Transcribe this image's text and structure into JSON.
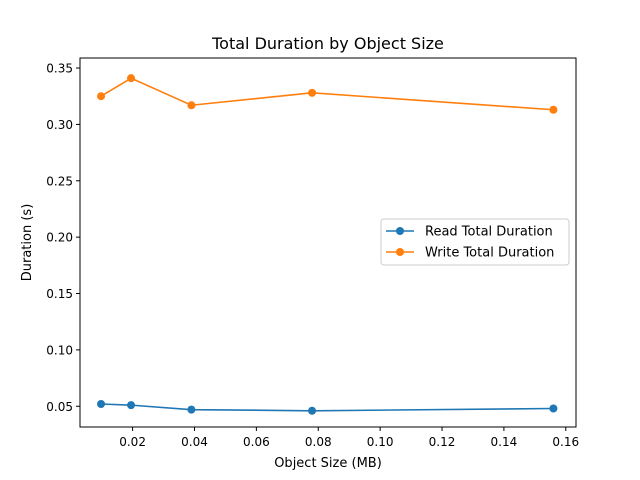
{
  "chart_data": {
    "type": "line",
    "title": "Total Duration by Object Size",
    "xlabel": "Object Size (MB)",
    "ylabel": "Duration (s)",
    "xlim": [
      0.003,
      0.1633
    ],
    "ylim": [
      0.0316,
      0.3589
    ],
    "x_ticks": [
      0.02,
      0.04,
      0.06,
      0.08,
      0.1,
      0.12,
      0.14,
      0.16
    ],
    "x_tick_labels": [
      "0.02",
      "0.04",
      "0.06",
      "0.08",
      "0.10",
      "0.12",
      "0.14",
      "0.16"
    ],
    "y_ticks": [
      0.05,
      0.1,
      0.15,
      0.2,
      0.25,
      0.3,
      0.35
    ],
    "y_tick_labels": [
      "0.05",
      "0.10",
      "0.15",
      "0.20",
      "0.25",
      "0.30",
      "0.35"
    ],
    "grid": false,
    "legend_position": "center-right",
    "x": [
      0.0098,
      0.0195,
      0.039,
      0.078,
      0.156
    ],
    "series": [
      {
        "name": "Read Total Duration",
        "color": "#1f77b4",
        "values": [
          0.052,
          0.051,
          0.047,
          0.046,
          0.048
        ]
      },
      {
        "name": "Write Total Duration",
        "color": "#ff7f0e",
        "values": [
          0.325,
          0.341,
          0.317,
          0.328,
          0.313
        ]
      }
    ]
  }
}
